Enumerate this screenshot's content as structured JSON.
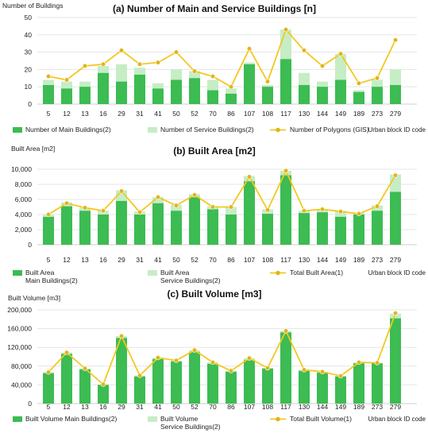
{
  "colors": {
    "main": "#3cbc52",
    "service": "#c6edc6",
    "line": "#f3c81e",
    "marker": "#e1b51a"
  },
  "chart_data": [
    {
      "type": "bar",
      "stacked": true,
      "title": "(a) Number of Main and Service Buildings [n]",
      "ylabel": "Number of Buildings",
      "xlabel": "Urban block ID code",
      "ylim": [
        0,
        50
      ],
      "yticks": [
        0,
        10,
        20,
        30,
        40,
        50
      ],
      "ytick_labels": [
        "0",
        "10",
        "20",
        "30",
        "40",
        "50"
      ],
      "categories": [
        "5",
        "12",
        "13",
        "16",
        "29",
        "31",
        "41",
        "50",
        "52",
        "70",
        "86",
        "107",
        "108",
        "117",
        "130",
        "144",
        "149",
        "189",
        "273",
        "279"
      ],
      "series": [
        {
          "name": "Number of Main Buildings(2)",
          "kind": "bar",
          "values": [
            11,
            9,
            10,
            18,
            13,
            17,
            9,
            14,
            15,
            8,
            6,
            23,
            10,
            26,
            11,
            10,
            14,
            7,
            10,
            11
          ]
        },
        {
          "name": "Number of Service Buildings(2)",
          "kind": "bar",
          "values": [
            3,
            4,
            3,
            4,
            10,
            4,
            3,
            6,
            4,
            6,
            3,
            1,
            1,
            17,
            7,
            3,
            15,
            1,
            4,
            9
          ]
        },
        {
          "name": "Number of Polygons (GIS)",
          "kind": "line",
          "values": [
            16,
            14,
            22,
            23,
            31,
            23,
            24,
            30,
            19,
            16,
            10,
            32,
            13,
            43,
            31,
            22,
            29,
            12,
            15,
            37
          ]
        }
      ],
      "legend": [
        {
          "label": "Number of Main Buildings(2)",
          "kind": "bar",
          "series": 0
        },
        {
          "label": "Number of Service Buildings(2)",
          "kind": "bar",
          "series": 1
        },
        {
          "label": "Number of Polygons (GIS)",
          "kind": "line",
          "series": 2
        }
      ]
    },
    {
      "type": "bar",
      "stacked": true,
      "title": "(b) Built Area [m2]",
      "ylabel": "Built Area [m2]",
      "xlabel": "Urban block ID code",
      "ylim": [
        0,
        10000
      ],
      "yticks": [
        0,
        2000,
        4000,
        6000,
        8000,
        10000
      ],
      "ytick_labels": [
        "0",
        "2,000",
        "4,000",
        "6,000",
        "8,000",
        "10,000"
      ],
      "categories": [
        "5",
        "12",
        "13",
        "16",
        "29",
        "31",
        "41",
        "50",
        "52",
        "70",
        "86",
        "107",
        "108",
        "117",
        "130",
        "144",
        "149",
        "189",
        "273",
        "279"
      ],
      "series": [
        {
          "name": "Built Area Main Buildings(2)",
          "kind": "bar",
          "values": [
            3700,
            5100,
            4500,
            4000,
            5800,
            4000,
            5500,
            4500,
            6300,
            4700,
            4000,
            8400,
            4100,
            9200,
            4200,
            4300,
            3700,
            4000,
            4500,
            7000
          ]
        },
        {
          "name": "Built Area Service Buildings(2)",
          "kind": "bar",
          "values": [
            300,
            500,
            400,
            500,
            1400,
            400,
            800,
            800,
            400,
            400,
            1000,
            700,
            600,
            600,
            300,
            400,
            800,
            200,
            700,
            2300
          ]
        },
        {
          "name": "Total Built Area(1)",
          "kind": "line",
          "values": [
            4000,
            5500,
            4900,
            4500,
            7100,
            4300,
            6300,
            5200,
            6600,
            5000,
            5000,
            9000,
            4600,
            9800,
            4500,
            4700,
            4400,
            4100,
            5100,
            9200
          ]
        }
      ],
      "legend": [
        {
          "label": "Built Area",
          "label2": "Main Buildings(2)",
          "kind": "bar",
          "series": 0
        },
        {
          "label": "Built Area",
          "label2": "Service Buildings(2)",
          "kind": "bar",
          "series": 1
        },
        {
          "label": "Total Built Area(1)",
          "kind": "line",
          "series": 2
        }
      ]
    },
    {
      "type": "bar",
      "stacked": true,
      "title": "(c) Built Volume [m3]",
      "ylabel": "Built Volume [m3]",
      "xlabel": "Urban block ID code",
      "ylim": [
        0,
        200000
      ],
      "yticks": [
        0,
        40000,
        80000,
        120000,
        160000,
        200000
      ],
      "ytick_labels": [
        "0",
        "40,000",
        "80,000",
        "120,000",
        "160,000",
        "200,000"
      ],
      "categories": [
        "5",
        "12",
        "13",
        "16",
        "29",
        "31",
        "41",
        "50",
        "52",
        "70",
        "86",
        "107",
        "108",
        "117",
        "130",
        "144",
        "149",
        "189",
        "273",
        "279"
      ],
      "series": [
        {
          "name": "Built Volume Main Buildings(2)",
          "kind": "bar",
          "values": [
            65000,
            106000,
            73000,
            40000,
            140000,
            58000,
            95000,
            90000,
            110000,
            85000,
            68000,
            93000,
            75000,
            152000,
            70000,
            66000,
            58000,
            86000,
            86000,
            182000
          ]
        },
        {
          "name": "Built Volume Service Buildings(2)",
          "kind": "bar",
          "values": [
            2000,
            3000,
            2000,
            1000,
            4000,
            2000,
            3000,
            2000,
            4000,
            3000,
            2000,
            4000,
            1000,
            3000,
            2000,
            2000,
            1000,
            2000,
            1000,
            10000
          ]
        },
        {
          "name": "Total Built Volume(1)",
          "kind": "line",
          "values": [
            67000,
            109000,
            75000,
            41000,
            144000,
            60000,
            98000,
            92000,
            114000,
            88000,
            70000,
            97000,
            76000,
            155000,
            72000,
            68000,
            59000,
            88000,
            87000,
            193000
          ]
        }
      ],
      "legend": [
        {
          "label": "Built Volume Main Buildings(2)",
          "kind": "bar",
          "series": 0
        },
        {
          "label": "Built Volume",
          "label2": "Service Buildings(2)",
          "kind": "bar",
          "series": 1
        },
        {
          "label": "Total Built Volume(1)",
          "kind": "line",
          "series": 2
        }
      ]
    }
  ]
}
